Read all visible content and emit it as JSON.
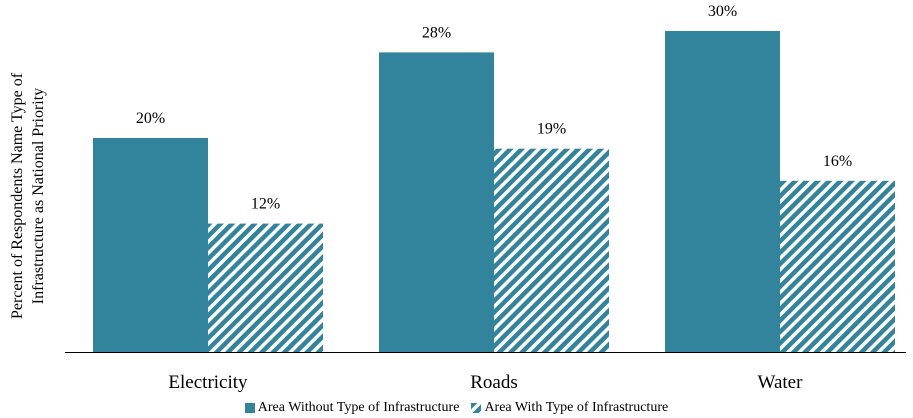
{
  "chart_data": {
    "type": "bar",
    "categories": [
      "Electricity",
      "Roads",
      "Water"
    ],
    "series": [
      {
        "name": "Area Without Type of Infrastructure",
        "values": [
          20,
          28,
          30
        ],
        "labels": [
          "20%",
          "28%",
          "30%"
        ],
        "color": "#31849B",
        "pattern": "solid"
      },
      {
        "name": "Area With Type of Infrastructure",
        "values": [
          12,
          19,
          16
        ],
        "labels": [
          "12%",
          "19%",
          "16%"
        ],
        "color": "#31849B",
        "pattern": "diagonal-stripes"
      }
    ],
    "ylabel_line1": "Percent of Respondents Name Type of",
    "ylabel_line2": "Infrastructure as National Priority",
    "ylim": [
      0,
      32
    ],
    "grid": false,
    "legend_position": "bottom"
  }
}
